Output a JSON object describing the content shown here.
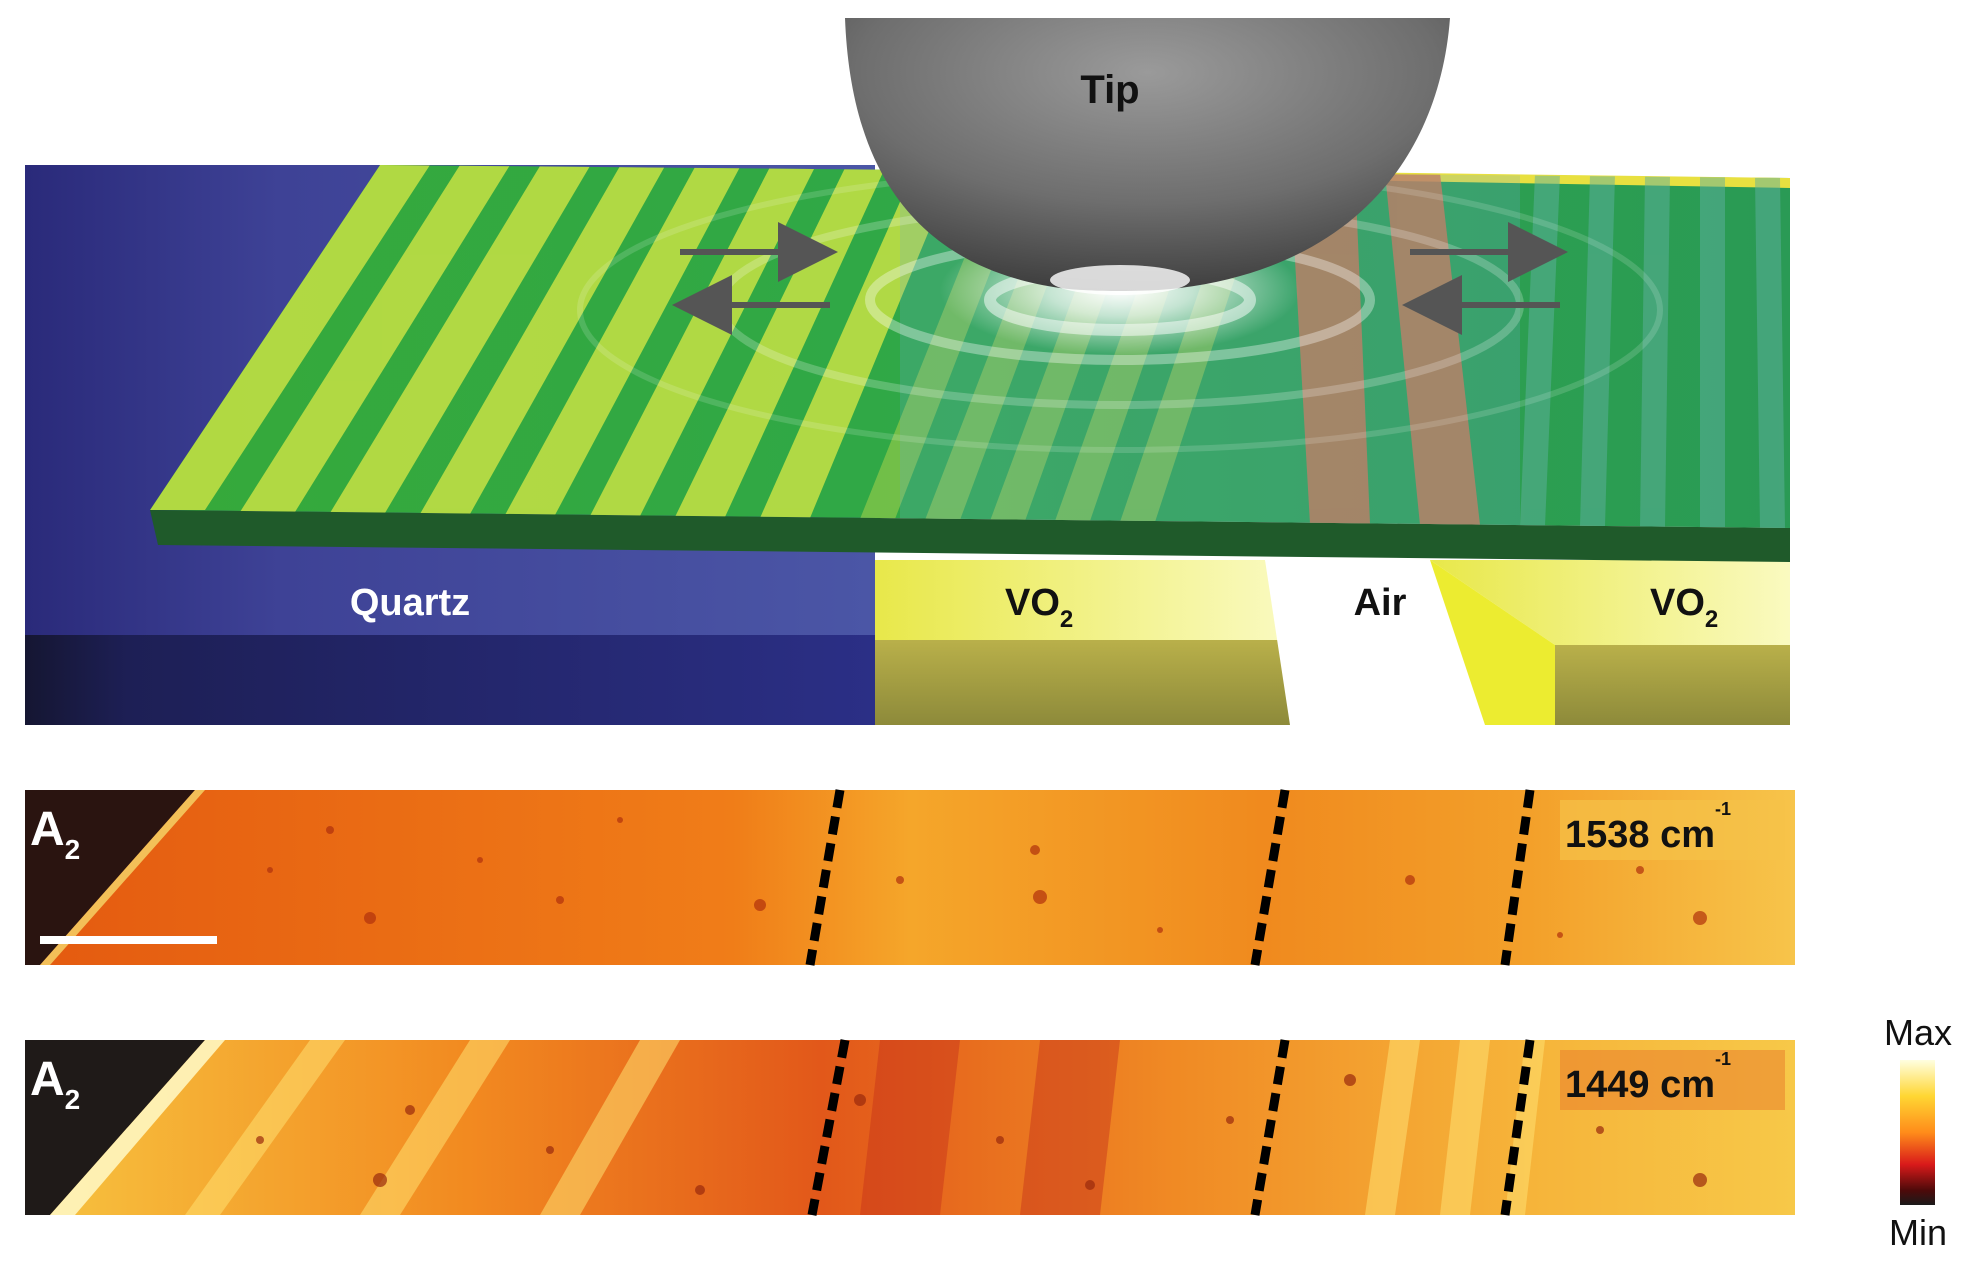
{
  "panel_a": {
    "tip_label": "Tip",
    "quartz_label": "Quartz",
    "vo2_label": "VO",
    "vo2_sub": "2",
    "air_label": "Air",
    "colors": {
      "quartz": "#3c3f9c",
      "vo2": "#f2f06a",
      "film": "#2ea33a",
      "stripe": "#c9e44a",
      "tip": "#8a8a8a",
      "arrow": "#555555"
    }
  },
  "panel_b": {
    "phase_label": "A",
    "phase_sub": "2",
    "wavenumber": "1538 cm",
    "unit_sup": "-1"
  },
  "panel_c": {
    "phase_label": "A",
    "phase_sub": "2",
    "wavenumber": "1449 cm",
    "unit_sup": "-1"
  },
  "colorbar": {
    "max_label": "Max",
    "min_label": "Min",
    "stops": [
      "#ffffe0",
      "#ffd633",
      "#ff8c1a",
      "#d91a1a",
      "#4d0a0a",
      "#1a1a1a"
    ]
  }
}
